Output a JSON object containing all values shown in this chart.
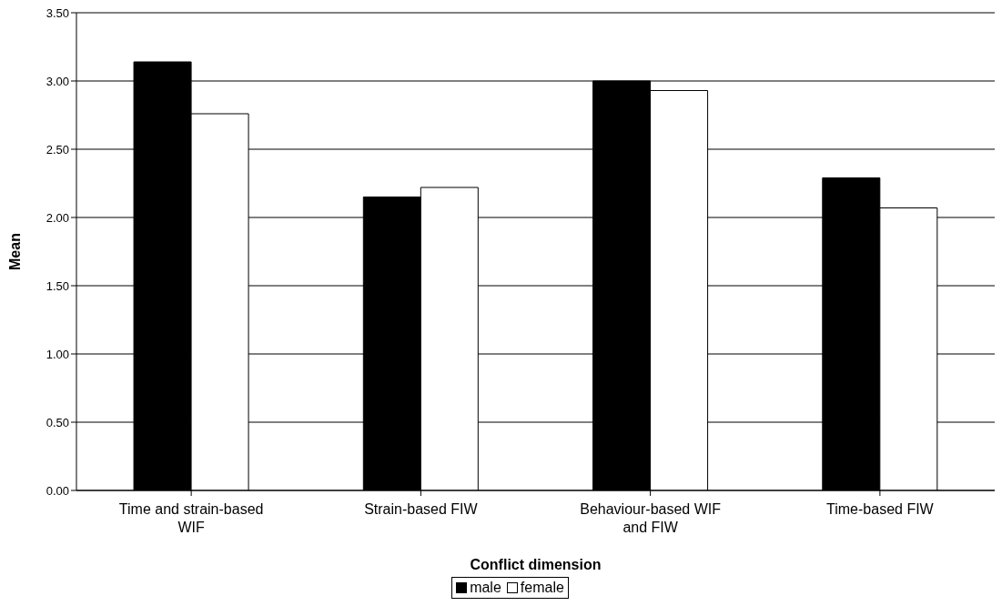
{
  "chart_data": {
    "type": "bar",
    "xlabel": "Conflict dimension",
    "ylabel": "Mean",
    "categories": [
      "Time and strain-based WIF",
      "Strain-based FIW",
      "Behaviour-based WIF and FIW",
      "Time-based FIW"
    ],
    "series": [
      {
        "name": "male",
        "color": "#000000",
        "values": [
          3.14,
          2.15,
          3.0,
          2.29
        ]
      },
      {
        "name": "female",
        "color": "#ffffff",
        "values": [
          2.76,
          2.22,
          2.93,
          2.07
        ]
      }
    ],
    "ylim": [
      0,
      3.5
    ],
    "yticks": [
      {
        "value": 0,
        "label": "0.00"
      },
      {
        "value": 0.5,
        "label": "0.50"
      },
      {
        "value": 1,
        "label": "1.00"
      },
      {
        "value": 1.5,
        "label": "1.50"
      },
      {
        "value": 2,
        "label": "2.00"
      },
      {
        "value": 2.5,
        "label": "2.50"
      },
      {
        "value": 3,
        "label": "3.00"
      },
      {
        "value": 3.5,
        "label": "3.50"
      }
    ],
    "grid": "y",
    "legend": "bottom"
  }
}
